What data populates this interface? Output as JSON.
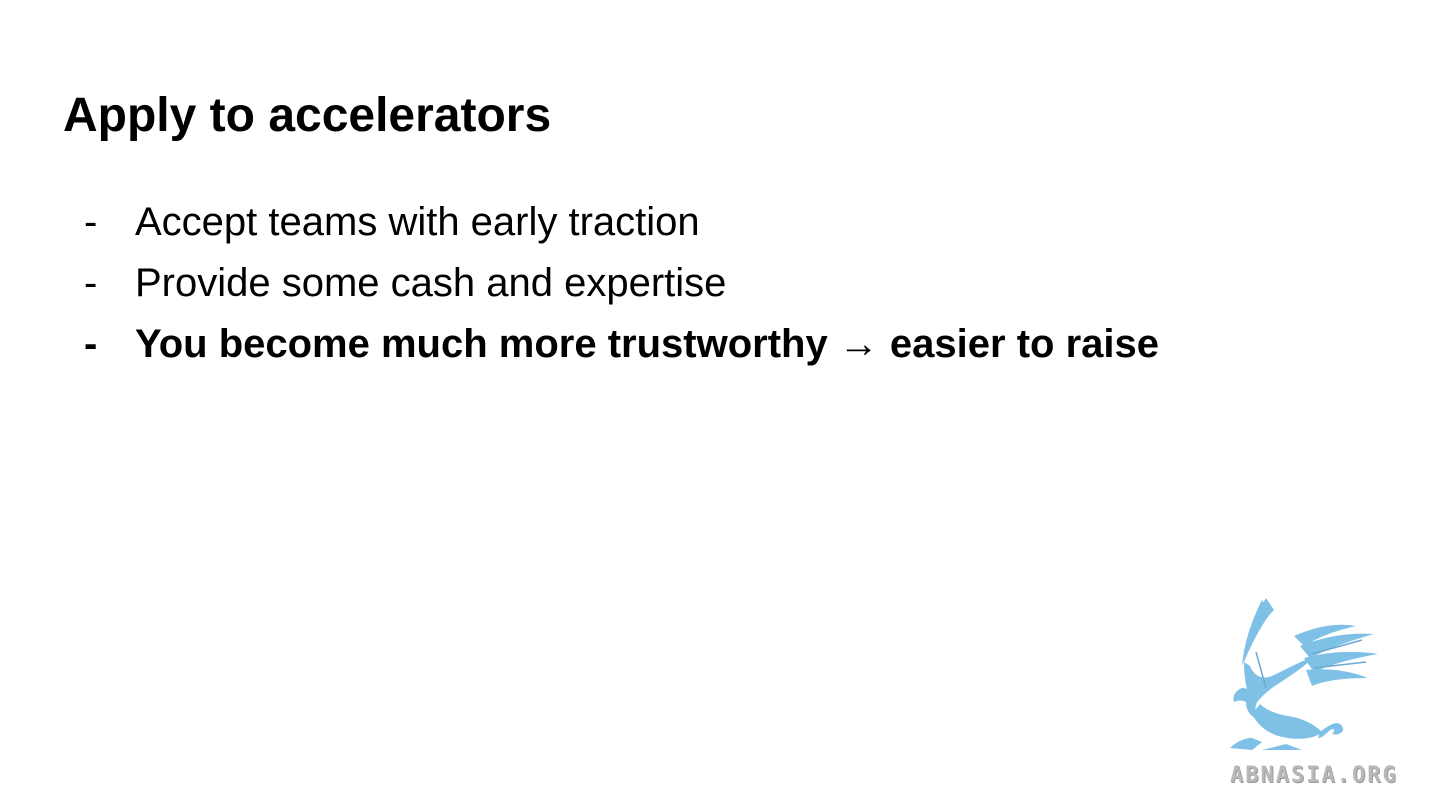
{
  "slide": {
    "title": "Apply to accelerators",
    "bullets": [
      {
        "marker": "-",
        "text": "Accept teams with early traction",
        "bold": false
      },
      {
        "marker": "-",
        "text": "Provide some cash and expertise",
        "bold": false
      },
      {
        "marker": "-",
        "text": "You become much more trustworthy → easier to raise",
        "bold": true
      }
    ]
  },
  "logo": {
    "icon": "griffin-icon",
    "color": "#7ec0e6",
    "watermark_text": "ABNASIA.ORG",
    "watermark_color": "#b8b8b8"
  },
  "colors": {
    "background": "#ffffff",
    "text": "#000000"
  }
}
